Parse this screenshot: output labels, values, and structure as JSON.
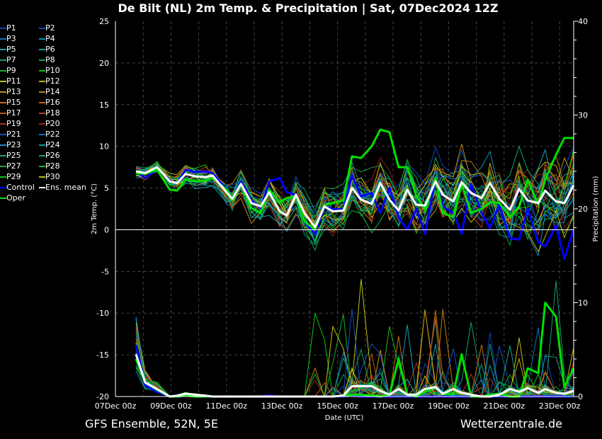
{
  "chart_data": {
    "type": "line",
    "title": "De Bilt  (NL)  2m Temp. & Precipitation | Sat, 07Dec2024 12Z",
    "xlabel": "Date (UTC)",
    "ylabel": "2m Temp. (°C)",
    "ylabel_right": "Precipitation (mm)",
    "ylim": [
      -20,
      25
    ],
    "ylim_right": [
      0,
      40
    ],
    "xlim_days": [
      0,
      16.5
    ],
    "yticks": [
      "25",
      "20",
      "15",
      "10",
      "5",
      "0",
      "-5",
      "-10",
      "-15",
      "-20"
    ],
    "yticks_right": [
      "40",
      "30",
      "20",
      "10",
      "0"
    ],
    "xticks": [
      "07Dec 00z",
      "09Dec 00z",
      "11Dec 00z",
      "13Dec 00z",
      "15Dec 00z",
      "17Dec 00z",
      "19Dec 00z",
      "21Dec 00z",
      "23Dec 00z"
    ],
    "grid": true,
    "x_days": [
      0.74,
      1.07,
      1.5,
      1.96,
      2.22,
      2.53,
      2.86,
      3.24,
      3.5,
      4.0,
      4.21,
      4.52,
      4.9,
      5.23,
      5.54,
      5.92,
      6.17,
      6.5,
      6.81,
      7.19,
      7.53,
      7.83,
      8.21,
      8.52,
      8.85,
      9.23,
      9.54,
      9.87,
      10.2,
      10.51,
      10.84,
      11.15,
      11.53,
      11.79,
      12.17,
      12.47,
      12.81,
      13.19,
      13.49,
      13.83,
      14.21,
      14.54,
      14.85,
      15.23,
      15.48,
      15.87,
      16.17,
      16.5
    ],
    "series": [
      {
        "name": "Ens. mean",
        "color": "#ffffff",
        "temp": [
          7.0,
          6.8,
          7.5,
          5.8,
          5.6,
          6.7,
          6.4,
          6.3,
          6.5,
          4.5,
          3.7,
          5.5,
          3.2,
          2.8,
          4.5,
          2.2,
          1.7,
          4.2,
          2.0,
          0.3,
          2.8,
          2.2,
          2.3,
          5.0,
          3.6,
          3.1,
          5.6,
          3.6,
          2.3,
          4.8,
          3.0,
          2.9,
          5.8,
          4.2,
          3.4,
          5.7,
          4.4,
          3.8,
          5.6,
          3.7,
          2.4,
          4.9,
          3.5,
          3.2,
          4.7,
          3.4,
          3.2,
          5.3
        ],
        "precip": [
          4.5,
          1.5,
          0.8,
          0,
          0.1,
          0.3,
          0.2,
          0.1,
          0,
          0,
          0,
          0,
          0,
          0,
          0,
          0,
          0,
          0,
          0,
          0,
          0,
          0,
          0.1,
          1.1,
          1.1,
          1.1,
          0.6,
          0.2,
          0.8,
          0.2,
          0.2,
          0.8,
          1.0,
          0.3,
          0.8,
          0.4,
          0.2,
          0,
          0,
          0.2,
          0.8,
          0.5,
          0.9,
          0.4,
          0.8,
          0.4,
          0.3,
          0.6
        ]
      },
      {
        "name": "Control",
        "color": "#0000ff",
        "temp": [
          7.0,
          6.2,
          7.3,
          5.9,
          5.6,
          7.2,
          6.9,
          7.0,
          6.8,
          4.8,
          3.5,
          5.8,
          3.5,
          2.6,
          5.8,
          6.2,
          4.5,
          4.2,
          1.0,
          -0.5,
          2.8,
          2.5,
          2.4,
          6.5,
          4.0,
          4.4,
          2.0,
          5.0,
          1.5,
          0.0,
          2.5,
          -0.5,
          6.2,
          2.8,
          2.0,
          -0.5,
          5.5,
          2.0,
          0.2,
          3.0,
          -1.0,
          -1.2,
          2.5,
          -1.5,
          -2.0,
          0.5,
          -3.5,
          0.0
        ],
        "precip": [
          5.5,
          1.2,
          0.5,
          0,
          0,
          0.1,
          0,
          0,
          0,
          0,
          0,
          0,
          0,
          0,
          0.1,
          0,
          0,
          0,
          0,
          0,
          0,
          0,
          0,
          0.1,
          0,
          0,
          0,
          0,
          0,
          0,
          0,
          0,
          0,
          0,
          0,
          0,
          0,
          0,
          0,
          0,
          0,
          0,
          0,
          0,
          0,
          0,
          0,
          0
        ]
      },
      {
        "name": "Oper",
        "color": "#00e000",
        "temp": [
          6.8,
          6.7,
          7.2,
          4.8,
          4.7,
          6.0,
          5.8,
          5.9,
          6.2,
          4.8,
          3.5,
          5.5,
          2.6,
          2.0,
          4.8,
          3.3,
          3.8,
          4.0,
          1.0,
          0.0,
          3.0,
          3.2,
          3.5,
          8.8,
          8.6,
          10.0,
          12.0,
          11.7,
          7.5,
          7.5,
          4.0,
          2.5,
          6.2,
          2.0,
          1.5,
          5.5,
          2.0,
          2.5,
          3.3,
          3.2,
          1.5,
          2.8,
          6.0,
          3.0,
          6.0,
          9.0,
          11.0,
          11.0
        ],
        "precip": [
          4.0,
          1.5,
          0.7,
          0,
          0,
          0.1,
          0,
          0,
          0,
          0,
          0,
          0,
          0,
          0,
          0,
          0,
          0,
          0,
          0,
          0,
          0,
          0,
          0.1,
          0.2,
          0.2,
          0.1,
          0,
          0.2,
          4.0,
          0.2,
          0,
          0.5,
          1.0,
          0.3,
          0.2,
          4.5,
          0,
          0,
          0.2,
          0.3,
          0,
          0,
          3.0,
          2.5,
          10.0,
          8.5,
          1.0,
          3.0
        ]
      }
    ],
    "legend": {
      "placement": "left",
      "members": [
        {
          "name": "P1",
          "color": "#1040c0"
        },
        {
          "name": "P2",
          "color": "#1050c0"
        },
        {
          "name": "P3",
          "color": "#1070c0"
        },
        {
          "name": "P4",
          "color": "#1090c0"
        },
        {
          "name": "P5",
          "color": "#10a0b0"
        },
        {
          "name": "P6",
          "color": "#10a090"
        },
        {
          "name": "P7",
          "color": "#10a070"
        },
        {
          "name": "P8",
          "color": "#10a050"
        },
        {
          "name": "P9",
          "color": "#10b030"
        },
        {
          "name": "P10",
          "color": "#10c010"
        },
        {
          "name": "P11",
          "color": "#c0c010"
        },
        {
          "name": "P12",
          "color": "#c0b010"
        },
        {
          "name": "P13",
          "color": "#c09010"
        },
        {
          "name": "P14",
          "color": "#c08010"
        },
        {
          "name": "P15",
          "color": "#c07010"
        },
        {
          "name": "P16",
          "color": "#c06010"
        },
        {
          "name": "P17",
          "color": "#c05010"
        },
        {
          "name": "P18",
          "color": "#b04020"
        },
        {
          "name": "P19",
          "color": "#a03020"
        },
        {
          "name": "P20",
          "color": "#902020"
        },
        {
          "name": "P21",
          "color": "#1050c0"
        },
        {
          "name": "P22",
          "color": "#1070c0"
        },
        {
          "name": "P23",
          "color": "#1090c0"
        },
        {
          "name": "P24",
          "color": "#10a0b0"
        },
        {
          "name": "P25",
          "color": "#10a080"
        },
        {
          "name": "P26",
          "color": "#10a070"
        },
        {
          "name": "P27",
          "color": "#10a050"
        },
        {
          "name": "P28",
          "color": "#10b030"
        },
        {
          "name": "P29",
          "color": "#10c010"
        },
        {
          "name": "P30",
          "color": "#c0c010"
        },
        {
          "name": "Control",
          "color": "#0000ff"
        },
        {
          "name": "Ens. mean",
          "color": "#ffffff"
        },
        {
          "name": "Oper",
          "color": "#00e000"
        }
      ]
    }
  },
  "footer": {
    "source": "GFS Ensemble, 52N, 5E",
    "site": "Wetterzentrale.de"
  }
}
